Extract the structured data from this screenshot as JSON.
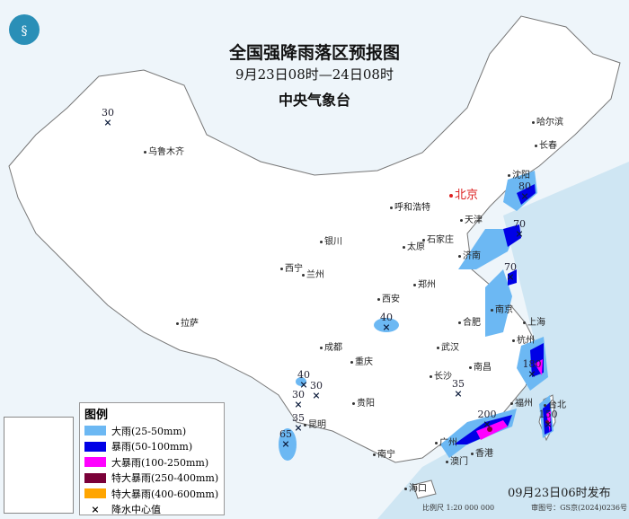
{
  "title": "全国强降雨落区预报图",
  "period": "9月23日08时—24日08时",
  "issuer": "中央气象台",
  "capital": "北京",
  "cities": [
    "乌鲁木齐",
    "哈尔滨",
    "长春",
    "沈阳",
    "呼和浩特",
    "天津",
    "石家庄",
    "太原",
    "银川",
    "济南",
    "西宁",
    "兰州",
    "郑州",
    "西安",
    "南京",
    "合肥",
    "上海",
    "成都",
    "武汉",
    "杭州",
    "拉萨",
    "重庆",
    "长沙",
    "南昌",
    "福州",
    "贵阳",
    "昆明",
    "台北",
    "南宁",
    "广州",
    "香港",
    "澳门",
    "海口"
  ],
  "rain_centers": [
    "30",
    "40",
    "40",
    "30",
    "30",
    "35",
    "65",
    "35",
    "80",
    "70",
    "70",
    "180",
    "200",
    "150"
  ],
  "legend": {
    "title": "图例",
    "items": [
      {
        "label": "大雨(25-50mm)",
        "color": "#6cb8f3"
      },
      {
        "label": "暴雨(50-100mm)",
        "color": "#0000e6"
      },
      {
        "label": "大暴雨(100-250mm)",
        "color": "#ff00ff"
      },
      {
        "label": "特大暴雨(250-400mm)",
        "color": "#7a0038"
      },
      {
        "label": "特大暴雨(400-600mm)",
        "color": "#ffa500"
      }
    ],
    "center_label": "降水中心值",
    "center_icon": "x-mark-icon"
  },
  "issue_time": "09月23日06时发布",
  "scale": "比例尺 1:20 000 000",
  "map_no": "审图号：GS京(2024)0236号"
}
